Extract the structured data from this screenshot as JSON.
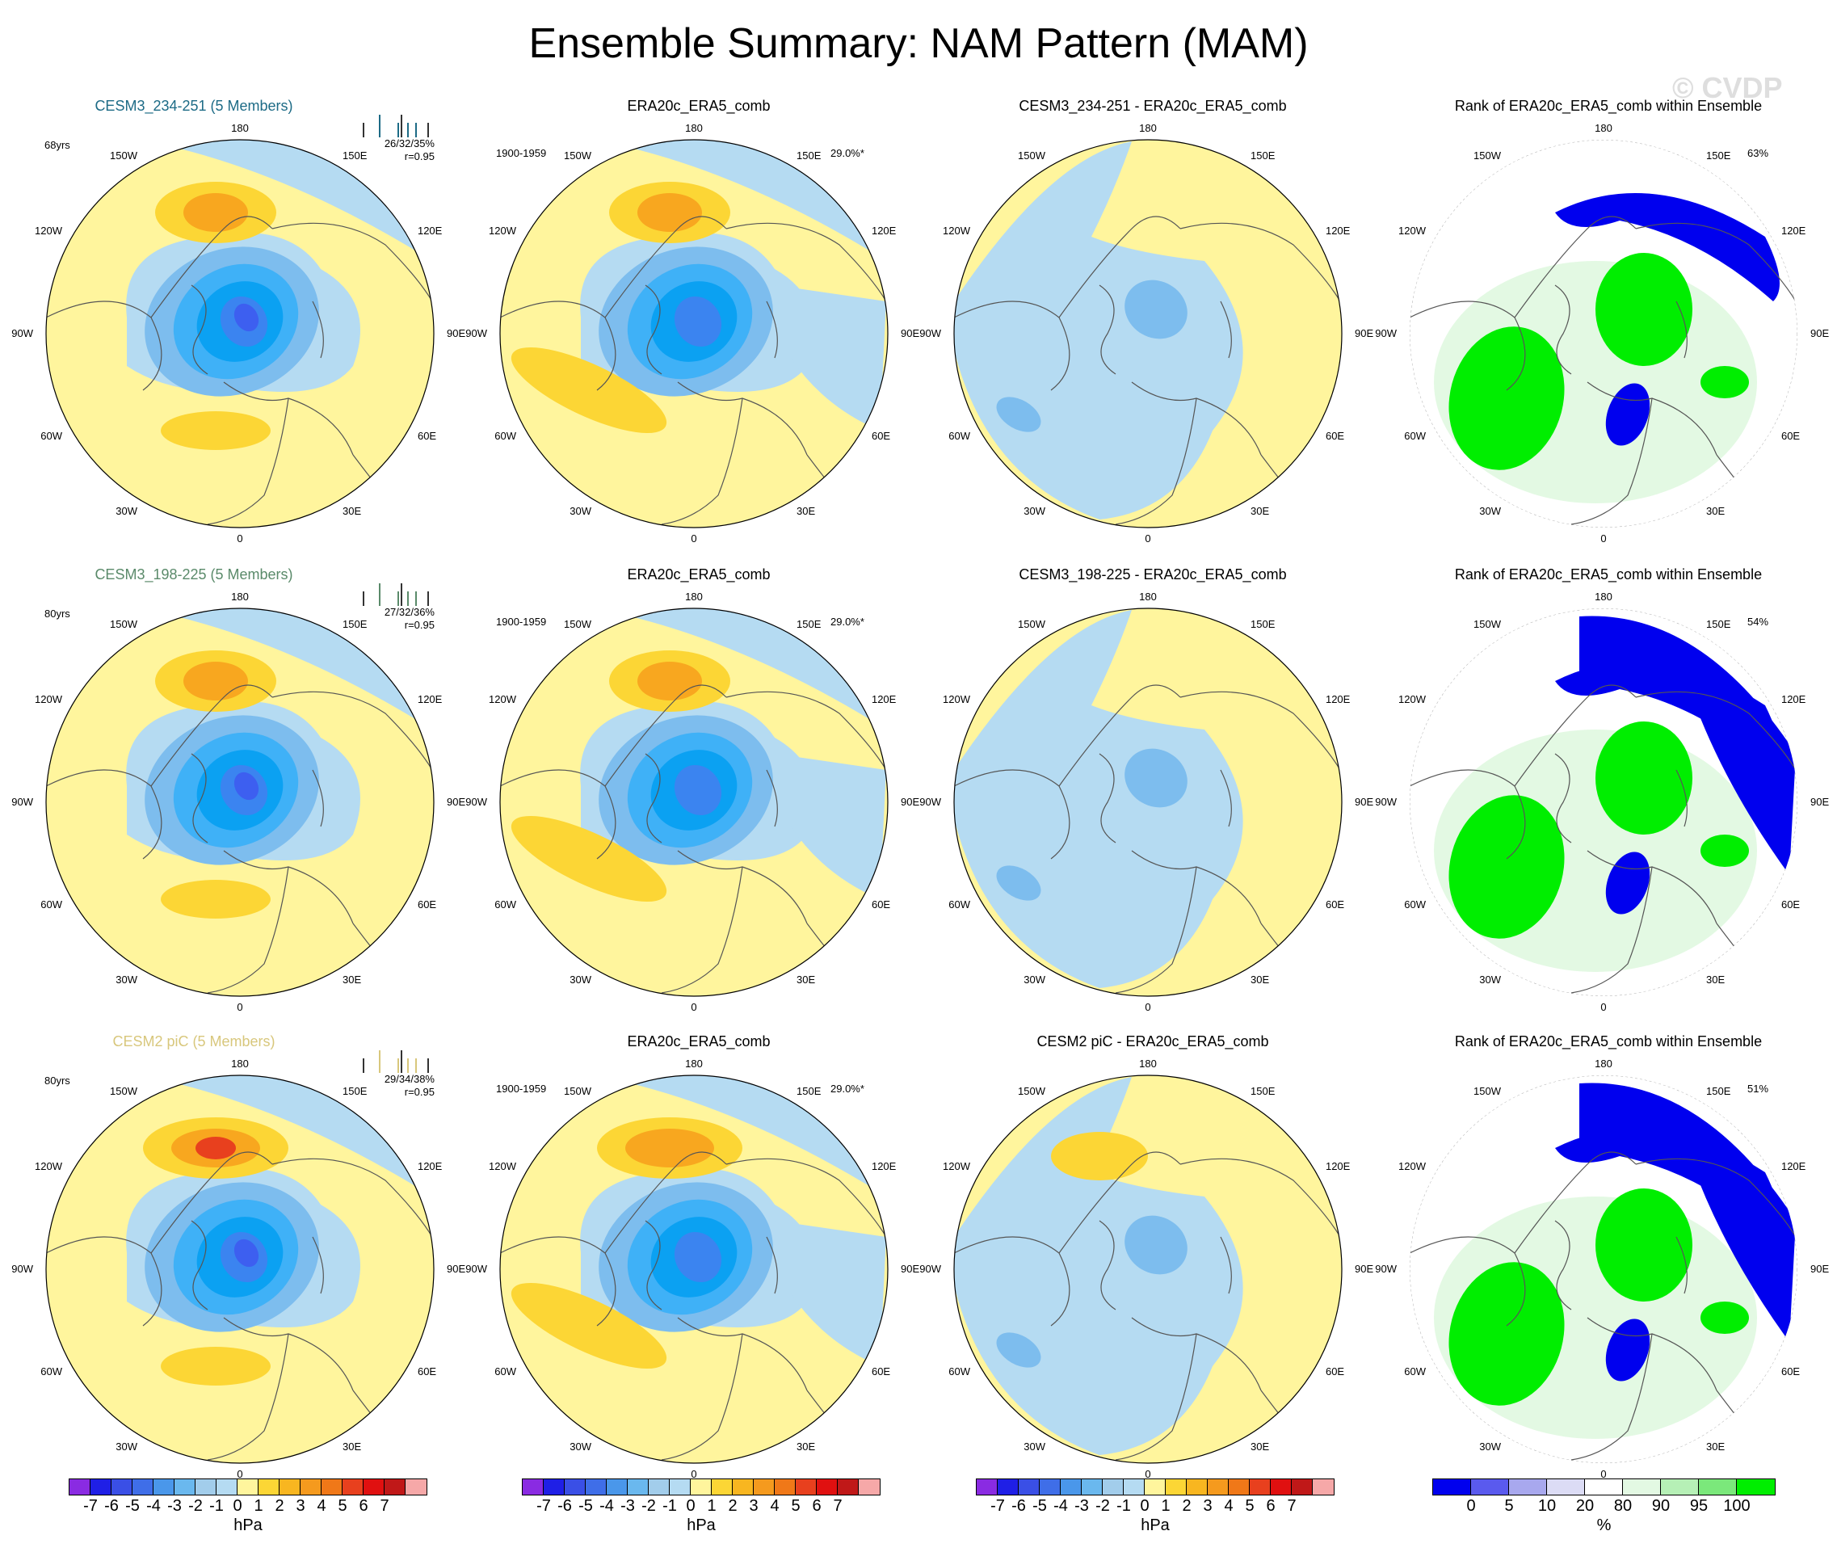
{
  "figure": {
    "title": "Ensemble Summary: NAM Pattern (MAM)",
    "watermark": "© CVDP"
  },
  "colors": {
    "sea_light": "#b5dbf2",
    "land_yellow": "#fff59d",
    "orange_light": "#fcd635",
    "orange": "#f8a71f",
    "orange_dark": "#f07818",
    "red": "#e8401e",
    "blue1": "#a2cdeb",
    "blue2": "#7dbdee",
    "blue3": "#3fb1f7",
    "blue4": "#0ba1f2",
    "blue5": "#3b84f0",
    "blue6": "#3d5ff0",
    "rank_blue": "#0000ee",
    "rank_green": "#00ee00",
    "rank_pale": "#e3f9e3",
    "coast": "#555555"
  },
  "longitude_labels": [
    "180",
    "150E",
    "120E",
    "90E",
    "60E",
    "30E",
    "0",
    "30W",
    "60W",
    "90W",
    "120W",
    "150W"
  ],
  "rows": [
    {
      "model": {
        "title": "CESM3_234-251 (5 Members)",
        "title_color": "#1d6b86",
        "years": "68yrs",
        "stats": "26/32/35%",
        "r": "r=0.95"
      },
      "obs": {
        "title": "ERA20c_ERA5_comb",
        "period": "1900-1959",
        "variance": "29.0%*"
      },
      "diff": {
        "title": "CESM3_234-251 - ERA20c_ERA5_comb"
      },
      "rank": {
        "title": "Rank of ERA20c_ERA5_comb within Ensemble",
        "percent": "63%"
      }
    },
    {
      "model": {
        "title": "CESM3_198-225 (5 Members)",
        "title_color": "#5a8a6a",
        "years": "80yrs",
        "stats": "27/32/36%",
        "r": "r=0.95"
      },
      "obs": {
        "title": "ERA20c_ERA5_comb",
        "period": "1900-1959",
        "variance": "29.0%*"
      },
      "diff": {
        "title": "CESM3_198-225 - ERA20c_ERA5_comb"
      },
      "rank": {
        "title": "Rank of ERA20c_ERA5_comb within Ensemble",
        "percent": "54%"
      }
    },
    {
      "model": {
        "title": "CESM2 piC (5 Members)",
        "title_color": "#d8c77c",
        "years": "80yrs",
        "stats": "29/34/38%",
        "r": "r=0.95"
      },
      "obs": {
        "title": "ERA20c_ERA5_comb",
        "period": "1900-1959",
        "variance": "29.0%*"
      },
      "diff": {
        "title": "CESM2 piC - ERA20c_ERA5_comb"
      },
      "rank": {
        "title": "Rank of ERA20c_ERA5_comb within Ensemble",
        "percent": "51%"
      }
    }
  ],
  "colorbar_hpa": {
    "units": "hPa",
    "labels": [
      "-7",
      "-6",
      "-5",
      "-4",
      "-3",
      "-2",
      "-1",
      "0",
      "1",
      "2",
      "3",
      "4",
      "5",
      "6",
      "7"
    ],
    "colors": [
      "#8a2be2",
      "#1f1fe6",
      "#3a4fe6",
      "#3f6ee8",
      "#4a97ea",
      "#6ab8ee",
      "#a2cdeb",
      "#b5dbf2",
      "#fff59d",
      "#fcd635",
      "#f8b620",
      "#f59a1e",
      "#f07818",
      "#e8401e",
      "#e01010",
      "#c01818",
      "#f6a8a8"
    ]
  },
  "colorbar_rank": {
    "units": "%",
    "labels": [
      "0",
      "5",
      "10",
      "20",
      "80",
      "90",
      "95",
      "100"
    ],
    "colors": [
      "#0000ee",
      "#5a5aee",
      "#a8a8ee",
      "#dcdcf5",
      "#ffffff",
      "#e3f9e3",
      "#b6f0b6",
      "#7be87b",
      "#00ee00"
    ]
  }
}
